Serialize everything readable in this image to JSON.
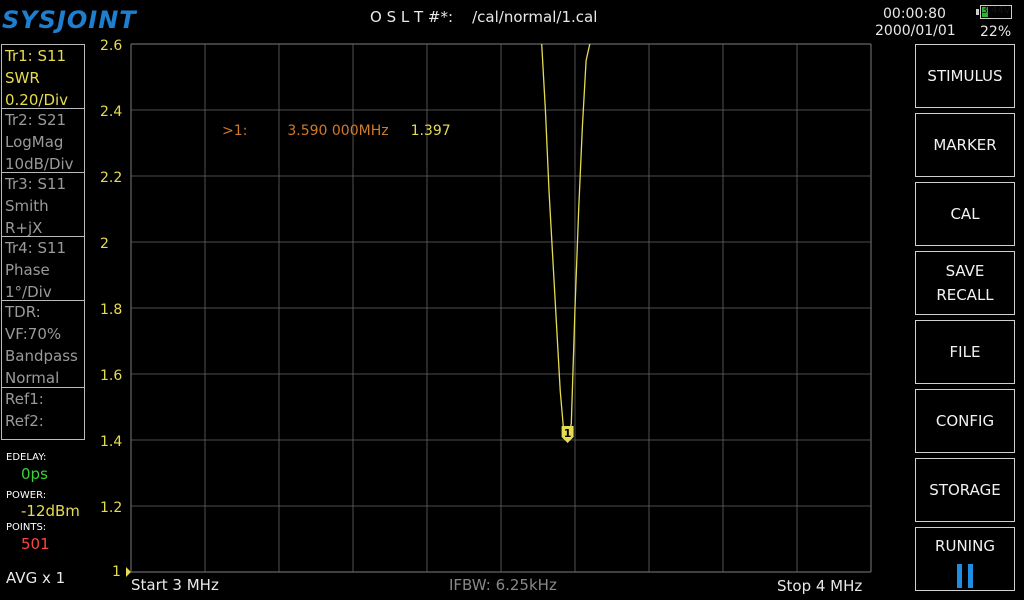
{
  "header": {
    "logo": "SYSJOINT",
    "cal_status": "O S L T #*:    /cal/normal/1.cal",
    "time": "00:00:80",
    "date": "2000/01/01",
    "battery_voltage": "3.44V",
    "battery_percent": "22%",
    "battery_level": 0.22
  },
  "traces": [
    {
      "line1": "Tr1:  S11",
      "line2": "SWR",
      "line3": "0.20/Div",
      "active": true
    },
    {
      "line1": "Tr2:  S21",
      "line2": "LogMag",
      "line3": "10dB/Div",
      "active": false
    },
    {
      "line1": "Tr3:  S11",
      "line2": "Smith",
      "line3": "R+jX",
      "active": false
    },
    {
      "line1": "Tr4:  S11",
      "line2": "Phase",
      "line3": "1°/Div",
      "active": false
    }
  ],
  "tdr": {
    "line1": "TDR:",
    "line2": "VF:70%",
    "line3": "Bandpass",
    "line4": "Normal"
  },
  "refs": {
    "line1": "Ref1:",
    "line2": "Ref2:"
  },
  "settings": {
    "edelay_label": "EDELAY:",
    "edelay_value": "0ps",
    "power_label": "POWER:",
    "power_value": "-12dBm",
    "points_label": "POINTS:",
    "points_value": "501"
  },
  "avg_label": "AVG x 1",
  "marker": {
    "label": ">1:",
    "frequency": "3.590 000MHz",
    "value": "1.397",
    "number": "1",
    "freq_mhz": 3.59,
    "swr": 1.397
  },
  "stimulus": {
    "start_label": "Start  3 MHz",
    "stop_label": "Stop  4 MHz",
    "ifbw_label": "IFBW: 6.25kHz"
  },
  "colors": {
    "trace": "#e6dc50",
    "marker_text": "#d07a2a",
    "grid": "#666666",
    "accent": "#1f8de0"
  },
  "softkeys": {
    "stimulus": "STIMULUS",
    "marker": "MARKER",
    "cal": "CAL",
    "save_recall": "SAVE\nRECALL",
    "file": "FILE",
    "config": "CONFIG",
    "storage": "STORAGE",
    "running": "RUNING"
  },
  "chart_data": {
    "type": "line",
    "title": "",
    "xlabel": "",
    "ylabel": "",
    "xlim": [
      3.0,
      4.0
    ],
    "ylim": [
      1.0,
      2.6
    ],
    "yticks": [
      "2.6",
      "2.4",
      "2.2",
      "2",
      "1.8",
      "1.6",
      "1.4",
      "1.2",
      "1"
    ],
    "series": [
      {
        "x": [
          3.555,
          3.56,
          3.565,
          3.57,
          3.575,
          3.58,
          3.585,
          3.59,
          3.595,
          3.6,
          3.605,
          3.61,
          3.615,
          3.62
        ],
        "y": [
          2.6,
          2.4,
          2.15,
          1.95,
          1.75,
          1.55,
          1.42,
          1.397,
          1.45,
          1.8,
          2.1,
          2.35,
          2.55,
          2.6
        ]
      }
    ]
  }
}
